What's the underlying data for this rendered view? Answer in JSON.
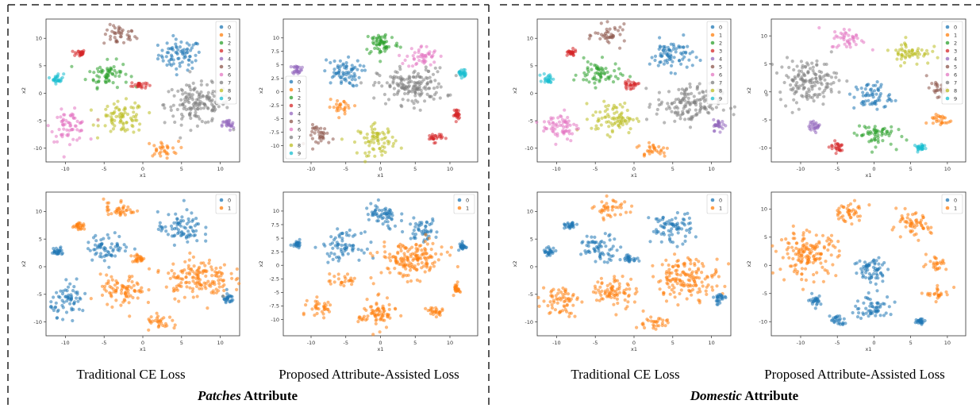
{
  "colors": {
    "0": "#1f77b4",
    "1": "#ff7f0e",
    "2": "#2ca02c",
    "3": "#d62728",
    "4": "#9467bd",
    "5": "#8c564b",
    "6": "#e377c2",
    "7": "#7f7f7f",
    "8": "#bcbd22",
    "9": "#17becf"
  },
  "captions": {
    "left_trad": "Traditional CE Loss",
    "left_prop": "Proposed Attribute-Assisted Loss",
    "right_trad": "Traditional CE Loss",
    "right_prop": "Proposed Attribute-Assisted Loss"
  },
  "attributes": {
    "left": {
      "name": "Patches",
      "suffix": " Attribute"
    },
    "right": {
      "name": "Domestic",
      "suffix": " Attribute"
    }
  },
  "chart_data": [
    {
      "id": "patches_ce_10class",
      "type": "scatter",
      "xlabel": "x1",
      "ylabel": "x2",
      "xlim": [
        -12.5,
        12.5
      ],
      "ylim": [
        -12.5,
        13.5
      ],
      "xticks": [
        -10,
        -5,
        0,
        5,
        10
      ],
      "yticks": [
        -10,
        -5,
        0,
        5,
        10
      ],
      "legend": [
        "0",
        "1",
        "2",
        "3",
        "4",
        "5",
        "6",
        "7",
        "8",
        "9"
      ],
      "legend_position": "top-right",
      "clusters": [
        {
          "label": "0",
          "x": 4.8,
          "y": 7.0,
          "rx": 3.3,
          "ry": 3.3
        },
        {
          "label": "5",
          "x": -3.0,
          "y": 10.5,
          "rx": 2.5,
          "ry": 2.2
        },
        {
          "label": "3",
          "x": -8.2,
          "y": 7.3,
          "rx": 0.9,
          "ry": 0.7
        },
        {
          "label": "2",
          "x": -4.5,
          "y": 3.5,
          "rx": 3.2,
          "ry": 2.8
        },
        {
          "label": "3",
          "x": -0.5,
          "y": 1.5,
          "rx": 1.2,
          "ry": 0.8
        },
        {
          "label": "9",
          "x": -11.0,
          "y": 2.7,
          "rx": 0.9,
          "ry": 1.1
        },
        {
          "label": "7",
          "x": 7.0,
          "y": -2.0,
          "rx": 5.0,
          "ry": 4.3
        },
        {
          "label": "8",
          "x": -2.6,
          "y": -4.5,
          "rx": 3.4,
          "ry": 3.4
        },
        {
          "label": "6",
          "x": -9.5,
          "y": -6.0,
          "rx": 2.8,
          "ry": 3.3
        },
        {
          "label": "1",
          "x": 2.5,
          "y": -10.2,
          "rx": 2.5,
          "ry": 1.7
        },
        {
          "label": "4",
          "x": 11.0,
          "y": -5.8,
          "rx": 0.9,
          "ry": 1.2
        }
      ]
    },
    {
      "id": "patches_proposed_10class",
      "type": "scatter",
      "xlabel": "x1",
      "ylabel": "x2",
      "xlim": [
        -14,
        14
      ],
      "ylim": [
        -13,
        13.5
      ],
      "xticks": [
        -10,
        -5,
        0,
        5,
        10
      ],
      "yticks": [
        -10,
        -7.5,
        -5,
        -2.5,
        0,
        2.5,
        5,
        7.5,
        10
      ],
      "legend": [
        "0",
        "1",
        "2",
        "3",
        "4",
        "5",
        "6",
        "7",
        "8",
        "9"
      ],
      "legend_position": "center-left",
      "clusters": [
        {
          "label": "2",
          "x": 0.2,
          "y": 9.0,
          "rx": 3.0,
          "ry": 2.8
        },
        {
          "label": "6",
          "x": 6.0,
          "y": 6.5,
          "rx": 2.7,
          "ry": 2.5
        },
        {
          "label": "4",
          "x": -12.0,
          "y": 4.2,
          "rx": 0.8,
          "ry": 1.0
        },
        {
          "label": "0",
          "x": -5.5,
          "y": 3.5,
          "rx": 3.3,
          "ry": 3.0
        },
        {
          "label": "9",
          "x": 11.8,
          "y": 3.5,
          "rx": 0.6,
          "ry": 1.0
        },
        {
          "label": "7",
          "x": 4.5,
          "y": 1.0,
          "rx": 5.8,
          "ry": 4.0
        },
        {
          "label": "1",
          "x": -5.5,
          "y": -2.8,
          "rx": 2.5,
          "ry": 1.5
        },
        {
          "label": "3",
          "x": 11.0,
          "y": -4.2,
          "rx": 0.5,
          "ry": 1.2
        },
        {
          "label": "5",
          "x": -8.5,
          "y": -8.0,
          "rx": 2.2,
          "ry": 2.2
        },
        {
          "label": "8",
          "x": -0.5,
          "y": -9.0,
          "rx": 3.2,
          "ry": 3.2
        },
        {
          "label": "3",
          "x": 7.8,
          "y": -8.5,
          "rx": 1.4,
          "ry": 1.0
        }
      ]
    },
    {
      "id": "domestic_ce_10class",
      "type": "scatter",
      "xlabel": "x1",
      "ylabel": "x2",
      "xlim": [
        -12.5,
        12.5
      ],
      "ylim": [
        -12.5,
        13.5
      ],
      "xticks": [
        -10,
        -5,
        0,
        5,
        10
      ],
      "yticks": [
        -10,
        -5,
        0,
        5,
        10
      ],
      "legend": [
        "0",
        "1",
        "2",
        "3",
        "4",
        "5",
        "6",
        "7",
        "8",
        "9"
      ],
      "legend_position": "top-right",
      "clusters": [
        {
          "label": "0",
          "x": 4.8,
          "y": 7.0,
          "rx": 3.3,
          "ry": 3.3
        },
        {
          "label": "5",
          "x": -3.0,
          "y": 10.5,
          "rx": 2.5,
          "ry": 2.2
        },
        {
          "label": "3",
          "x": -8.2,
          "y": 7.3,
          "rx": 0.9,
          "ry": 0.7
        },
        {
          "label": "2",
          "x": -4.5,
          "y": 3.5,
          "rx": 3.2,
          "ry": 2.8
        },
        {
          "label": "3",
          "x": -0.5,
          "y": 1.5,
          "rx": 1.2,
          "ry": 0.8
        },
        {
          "label": "9",
          "x": -11.0,
          "y": 2.7,
          "rx": 0.9,
          "ry": 1.1
        },
        {
          "label": "7",
          "x": 7.0,
          "y": -2.0,
          "rx": 5.0,
          "ry": 4.3
        },
        {
          "label": "8",
          "x": -2.6,
          "y": -4.5,
          "rx": 3.4,
          "ry": 3.4
        },
        {
          "label": "6",
          "x": -9.5,
          "y": -6.0,
          "rx": 2.8,
          "ry": 3.3
        },
        {
          "label": "1",
          "x": 2.5,
          "y": -10.2,
          "rx": 2.5,
          "ry": 1.7
        },
        {
          "label": "4",
          "x": 11.0,
          "y": -5.8,
          "rx": 0.9,
          "ry": 1.2
        }
      ]
    },
    {
      "id": "domestic_proposed_10class",
      "type": "scatter",
      "xlabel": "x1",
      "ylabel": "x2",
      "xlim": [
        -14,
        12.5
      ],
      "ylim": [
        -12.5,
        13
      ],
      "xticks": [
        -10,
        -5,
        0,
        5,
        10
      ],
      "yticks": [
        -10,
        -5,
        0,
        5,
        10
      ],
      "legend": [
        "0",
        "1",
        "2",
        "3",
        "4",
        "5",
        "6",
        "7",
        "8",
        "9"
      ],
      "legend_position": "top-right",
      "clusters": [
        {
          "label": "6",
          "x": -3.5,
          "y": 9.5,
          "rx": 2.8,
          "ry": 2.2
        },
        {
          "label": "8",
          "x": 5.0,
          "y": 7.0,
          "rx": 3.2,
          "ry": 2.6
        },
        {
          "label": "7",
          "x": -9.0,
          "y": 2.0,
          "rx": 4.8,
          "ry": 4.5
        },
        {
          "label": "0",
          "x": -0.2,
          "y": -0.8,
          "rx": 3.0,
          "ry": 3.0
        },
        {
          "label": "5",
          "x": 8.5,
          "y": 0.5,
          "rx": 1.6,
          "ry": 1.6
        },
        {
          "label": "4",
          "x": -8.0,
          "y": -6.2,
          "rx": 1.0,
          "ry": 1.0
        },
        {
          "label": "2",
          "x": 0.0,
          "y": -7.5,
          "rx": 3.2,
          "ry": 2.6
        },
        {
          "label": "1",
          "x": 8.8,
          "y": -5.0,
          "rx": 2.0,
          "ry": 1.5
        },
        {
          "label": "3",
          "x": -5.0,
          "y": -9.8,
          "rx": 1.2,
          "ry": 1.2
        },
        {
          "label": "9",
          "x": 6.3,
          "y": -10.0,
          "rx": 1.0,
          "ry": 0.8
        }
      ]
    },
    {
      "id": "patches_ce_binary",
      "type": "scatter",
      "xlabel": "x1",
      "ylabel": "x2",
      "xlim": [
        -12.5,
        12.5
      ],
      "ylim": [
        -12.5,
        13.5
      ],
      "xticks": [
        -10,
        -5,
        0,
        5,
        10
      ],
      "yticks": [
        -10,
        -5,
        0,
        5,
        10
      ],
      "legend": [
        "0",
        "1"
      ],
      "legend_position": "top-right",
      "clusters": [
        {
          "label": "0",
          "x": 4.8,
          "y": 7.0,
          "rx": 3.3,
          "ry": 3.3
        },
        {
          "label": "1",
          "x": -3.0,
          "y": 10.5,
          "rx": 2.5,
          "ry": 2.2
        },
        {
          "label": "1",
          "x": -8.2,
          "y": 7.3,
          "rx": 0.9,
          "ry": 0.7
        },
        {
          "label": "0",
          "x": -4.5,
          "y": 3.5,
          "rx": 3.2,
          "ry": 2.8
        },
        {
          "label": "1",
          "x": -0.5,
          "y": 1.5,
          "rx": 1.2,
          "ry": 0.8
        },
        {
          "label": "0",
          "x": -11.0,
          "y": 2.7,
          "rx": 0.9,
          "ry": 1.1
        },
        {
          "label": "1",
          "x": 7.0,
          "y": -2.0,
          "rx": 5.0,
          "ry": 4.3
        },
        {
          "label": "1",
          "x": -2.6,
          "y": -4.5,
          "rx": 3.4,
          "ry": 3.4
        },
        {
          "label": "0",
          "x": -9.5,
          "y": -6.0,
          "rx": 2.8,
          "ry": 3.3
        },
        {
          "label": "1",
          "x": 2.5,
          "y": -10.2,
          "rx": 2.5,
          "ry": 1.7
        },
        {
          "label": "0",
          "x": 11.0,
          "y": -5.8,
          "rx": 0.9,
          "ry": 1.2
        }
      ]
    },
    {
      "id": "patches_proposed_binary",
      "type": "scatter",
      "xlabel": "x1",
      "ylabel": "x2",
      "xlim": [
        -14,
        14
      ],
      "ylim": [
        -13,
        13.5
      ],
      "xticks": [
        -10,
        -5,
        0,
        5,
        10
      ],
      "yticks": [
        -10,
        -7.5,
        -5,
        -2.5,
        0,
        2.5,
        5,
        7.5,
        10
      ],
      "legend": [
        "0",
        "1"
      ],
      "legend_position": "top-right",
      "clusters": [
        {
          "label": "0",
          "x": 0.2,
          "y": 9.0,
          "rx": 3.0,
          "ry": 2.8
        },
        {
          "label": "0",
          "x": 6.0,
          "y": 6.5,
          "rx": 2.7,
          "ry": 2.5
        },
        {
          "label": "0",
          "x": -12.0,
          "y": 4.2,
          "rx": 0.8,
          "ry": 1.0
        },
        {
          "label": "0",
          "x": -5.5,
          "y": 3.5,
          "rx": 3.3,
          "ry": 3.0
        },
        {
          "label": "0",
          "x": 11.8,
          "y": 3.5,
          "rx": 0.6,
          "ry": 1.0
        },
        {
          "label": "1",
          "x": 4.5,
          "y": 1.0,
          "rx": 5.8,
          "ry": 4.0
        },
        {
          "label": "1",
          "x": -5.5,
          "y": -2.8,
          "rx": 2.5,
          "ry": 1.5
        },
        {
          "label": "1",
          "x": 11.0,
          "y": -4.2,
          "rx": 0.5,
          "ry": 1.2
        },
        {
          "label": "1",
          "x": -8.5,
          "y": -8.0,
          "rx": 2.2,
          "ry": 2.2
        },
        {
          "label": "1",
          "x": -0.5,
          "y": -9.0,
          "rx": 3.2,
          "ry": 3.2
        },
        {
          "label": "1",
          "x": 7.8,
          "y": -8.5,
          "rx": 1.4,
          "ry": 1.0
        }
      ]
    },
    {
      "id": "domestic_ce_binary",
      "type": "scatter",
      "xlabel": "x1",
      "ylabel": "x2",
      "xlim": [
        -12.5,
        12.5
      ],
      "ylim": [
        -12.5,
        13.5
      ],
      "xticks": [
        -10,
        -5,
        0,
        5,
        10
      ],
      "yticks": [
        -10,
        -5,
        0,
        5,
        10
      ],
      "legend": [
        "0",
        "1"
      ],
      "legend_position": "top-right",
      "clusters": [
        {
          "label": "0",
          "x": 4.8,
          "y": 7.0,
          "rx": 3.3,
          "ry": 3.3
        },
        {
          "label": "1",
          "x": -3.0,
          "y": 10.5,
          "rx": 2.5,
          "ry": 2.2
        },
        {
          "label": "0",
          "x": -8.2,
          "y": 7.3,
          "rx": 0.9,
          "ry": 0.7
        },
        {
          "label": "0",
          "x": -4.5,
          "y": 3.5,
          "rx": 3.2,
          "ry": 2.8
        },
        {
          "label": "0",
          "x": -0.5,
          "y": 1.5,
          "rx": 1.2,
          "ry": 0.8
        },
        {
          "label": "0",
          "x": -11.0,
          "y": 2.7,
          "rx": 0.9,
          "ry": 1.1
        },
        {
          "label": "1",
          "x": 7.0,
          "y": -2.0,
          "rx": 5.0,
          "ry": 4.3
        },
        {
          "label": "1",
          "x": -2.6,
          "y": -4.5,
          "rx": 3.4,
          "ry": 3.4
        },
        {
          "label": "1",
          "x": -9.5,
          "y": -6.0,
          "rx": 2.8,
          "ry": 3.3
        },
        {
          "label": "1",
          "x": 2.5,
          "y": -10.2,
          "rx": 2.5,
          "ry": 1.7
        },
        {
          "label": "0",
          "x": 11.0,
          "y": -5.8,
          "rx": 0.9,
          "ry": 1.2
        }
      ]
    },
    {
      "id": "domestic_proposed_binary",
      "type": "scatter",
      "xlabel": "x1",
      "ylabel": "x2",
      "xlim": [
        -14,
        12.5
      ],
      "ylim": [
        -12.5,
        13
      ],
      "xticks": [
        -10,
        -5,
        0,
        5,
        10
      ],
      "yticks": [
        -10,
        -5,
        0,
        5,
        10
      ],
      "legend": [
        "0",
        "1"
      ],
      "legend_position": "top-right",
      "clusters": [
        {
          "label": "1",
          "x": -3.5,
          "y": 9.5,
          "rx": 2.8,
          "ry": 2.2
        },
        {
          "label": "1",
          "x": 5.0,
          "y": 7.0,
          "rx": 3.2,
          "ry": 2.6
        },
        {
          "label": "1",
          "x": -9.0,
          "y": 2.0,
          "rx": 4.8,
          "ry": 4.5
        },
        {
          "label": "0",
          "x": -0.2,
          "y": -0.8,
          "rx": 3.0,
          "ry": 3.0
        },
        {
          "label": "1",
          "x": 8.5,
          "y": 0.5,
          "rx": 1.6,
          "ry": 1.6
        },
        {
          "label": "0",
          "x": -8.0,
          "y": -6.2,
          "rx": 1.0,
          "ry": 1.0
        },
        {
          "label": "0",
          "x": 0.0,
          "y": -7.5,
          "rx": 3.2,
          "ry": 2.6
        },
        {
          "label": "1",
          "x": 8.8,
          "y": -5.0,
          "rx": 2.0,
          "ry": 1.5
        },
        {
          "label": "0",
          "x": -5.0,
          "y": -9.8,
          "rx": 1.2,
          "ry": 1.2
        },
        {
          "label": "0",
          "x": 6.3,
          "y": -10.0,
          "rx": 1.0,
          "ry": 0.8
        }
      ]
    }
  ]
}
